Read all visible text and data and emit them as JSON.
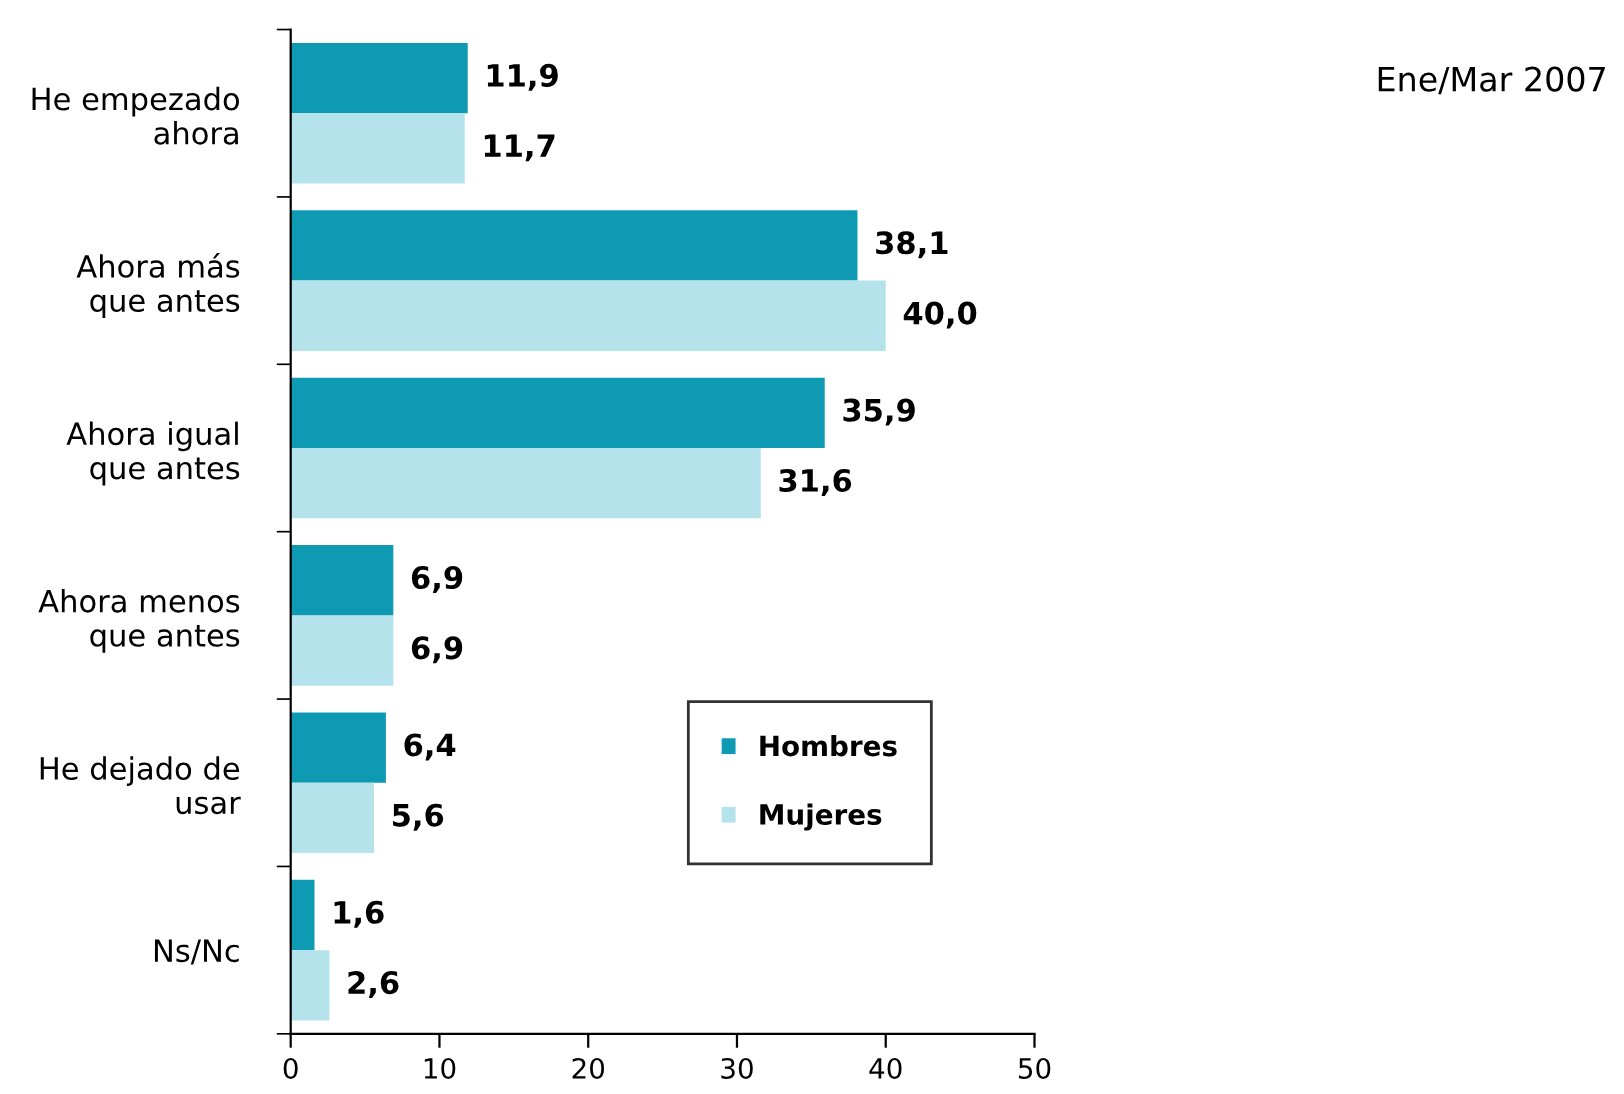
{
  "chart_data": {
    "type": "bar",
    "orientation": "horizontal",
    "title": "Ene/Mar 2007",
    "categories": [
      "He empezado\nahora",
      "Ahora más\nque antes",
      "Ahora igual\nque antes",
      "Ahora menos\nque antes",
      "He dejado de\nusar",
      "Ns/Nc"
    ],
    "series": [
      {
        "name": "Hombres",
        "color": "#0f9ab3",
        "values": [
          11.9,
          38.1,
          35.9,
          6.9,
          6.4,
          1.6
        ],
        "value_labels": [
          "11,9",
          "38,1",
          "35,9",
          "6,9",
          "6,4",
          "1,6"
        ]
      },
      {
        "name": "Mujeres",
        "color": "#b4e3ec",
        "values": [
          11.7,
          40.0,
          31.6,
          6.9,
          5.6,
          2.6
        ],
        "value_labels": [
          "11,7",
          "40,0",
          "31,6",
          "6,9",
          "5,6",
          "2,6"
        ]
      }
    ],
    "xlim": [
      0,
      50
    ],
    "xticks": [
      0,
      10,
      20,
      30,
      40,
      50
    ],
    "grid": false,
    "legend": "center right"
  }
}
